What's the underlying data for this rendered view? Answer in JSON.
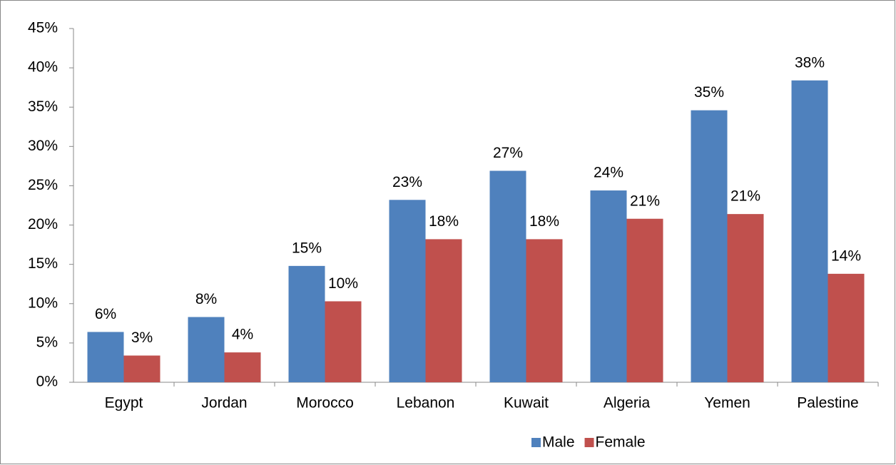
{
  "chart_data": {
    "type": "bar",
    "categories": [
      "Egypt",
      "Jordan",
      "Morocco",
      "Lebanon",
      "Kuwait",
      "Algeria",
      "Yemen",
      "Palestine"
    ],
    "series": [
      {
        "name": "Male",
        "color": "#4f81bd",
        "values": [
          6.4,
          8.3,
          14.8,
          23.2,
          26.9,
          24.4,
          34.6,
          38.4
        ],
        "value_labels": [
          "6%",
          "8%",
          "15%",
          "23%",
          "27%",
          "24%",
          "35%",
          "38%"
        ]
      },
      {
        "name": "Female",
        "color": "#c0504d",
        "values": [
          3.4,
          3.8,
          10.3,
          18.2,
          18.2,
          20.8,
          21.4,
          13.8
        ],
        "value_labels": [
          "3%",
          "4%",
          "10%",
          "18%",
          "18%",
          "21%",
          "21%",
          "14%"
        ]
      }
    ],
    "ylim": [
      0,
      45
    ],
    "yticks": [
      {
        "value": 0,
        "label": "0%"
      },
      {
        "value": 5,
        "label": "5%"
      },
      {
        "value": 10,
        "label": "10%"
      },
      {
        "value": 15,
        "label": "15%"
      },
      {
        "value": 20,
        "label": "20%"
      },
      {
        "value": 25,
        "label": "25%"
      },
      {
        "value": 30,
        "label": "30%"
      },
      {
        "value": 35,
        "label": "35%"
      },
      {
        "value": 40,
        "label": "40%"
      },
      {
        "value": 45,
        "label": "45%"
      }
    ],
    "legend": "bottom"
  }
}
